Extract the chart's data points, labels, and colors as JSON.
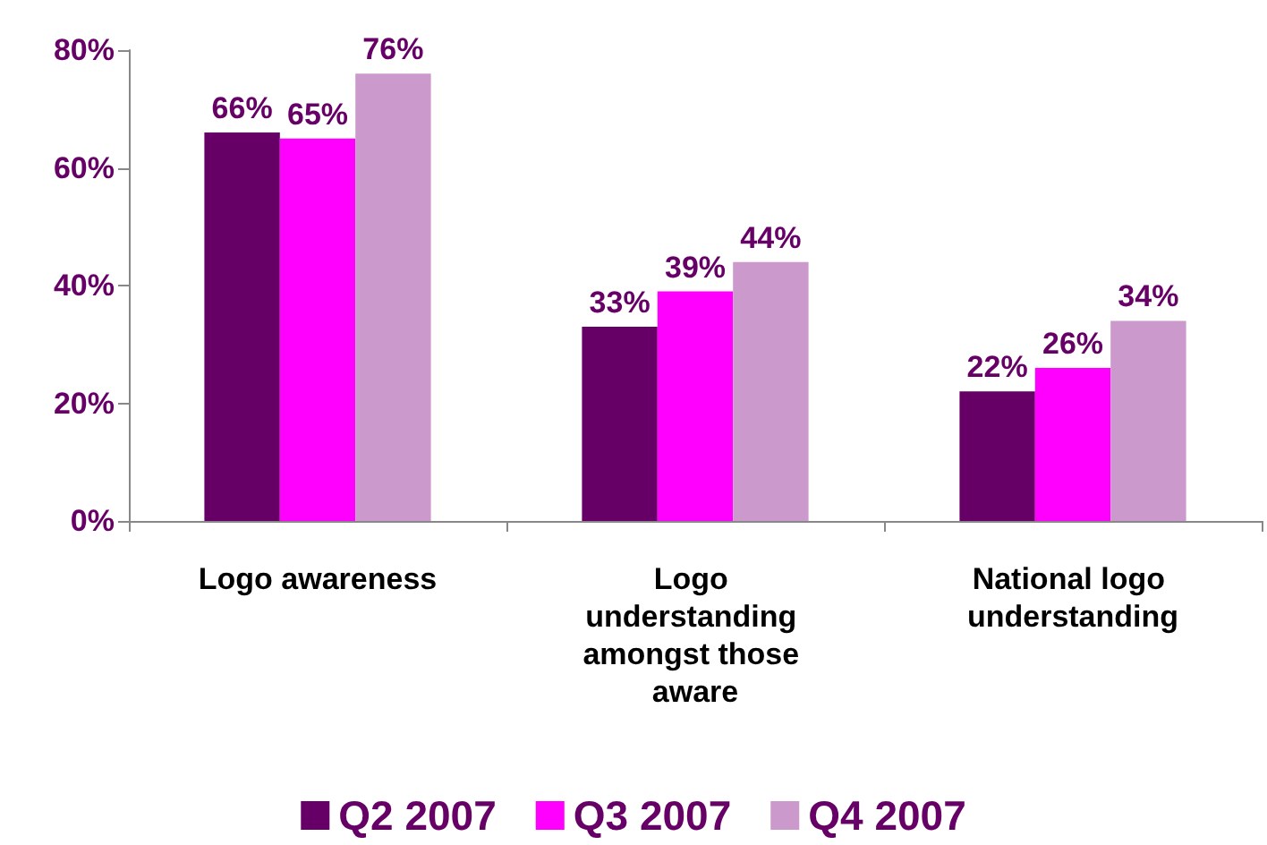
{
  "chart_data": {
    "type": "bar",
    "categories": [
      "Logo awareness",
      "Logo understanding amongst those aware",
      "National logo understanding"
    ],
    "series": [
      {
        "name": "Q2 2007",
        "color": "#660066",
        "values": [
          66,
          33,
          22
        ],
        "value_labels": [
          "66%",
          "33%",
          "22%"
        ]
      },
      {
        "name": "Q3 2007",
        "color": "#ff00ff",
        "values": [
          65,
          39,
          26
        ],
        "value_labels": [
          "65%",
          "39%",
          "26%"
        ]
      },
      {
        "name": "Q4 2007",
        "color": "#cc99cc",
        "values": [
          76,
          44,
          34
        ],
        "value_labels": [
          "76%",
          "44%",
          "34%"
        ]
      }
    ],
    "ylim": [
      0,
      80
    ],
    "yticks": [
      {
        "value": 0,
        "label": "0%"
      },
      {
        "value": 20,
        "label": "20%"
      },
      {
        "value": 40,
        "label": "40%"
      },
      {
        "value": 60,
        "label": "60%"
      },
      {
        "value": 80,
        "label": "80%"
      }
    ],
    "grid": false,
    "legend": "bottom"
  }
}
